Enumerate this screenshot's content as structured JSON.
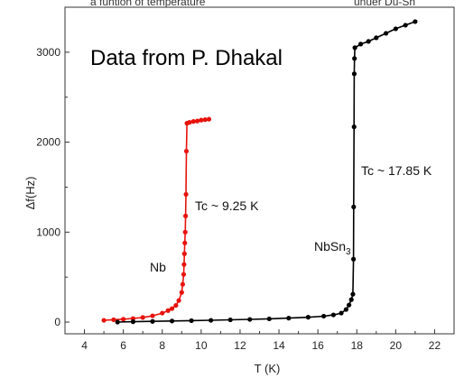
{
  "header": {
    "left_text": "a funtion of temperature",
    "right_text": "unuer Du-Sn"
  },
  "annotations": {
    "source": "Data from P. Dhakal",
    "nb_tc": "Tc ~ 9.25 K",
    "nbsn3_tc": "Tc ~ 17.85 K",
    "nb_label": "Nb",
    "nbsn3_label_main": "NbSn",
    "nbsn3_label_sub": "3"
  },
  "chart_data": {
    "type": "scatter",
    "title": "",
    "xlabel": "T (K)",
    "ylabel": "Δf(Hz)",
    "xlim": [
      3,
      23
    ],
    "ylim": [
      -130,
      3500
    ],
    "xticks": [
      4,
      6,
      8,
      10,
      12,
      14,
      16,
      18,
      20,
      22
    ],
    "yticks": [
      0,
      1000,
      2000,
      3000
    ],
    "series": [
      {
        "name": "Nb",
        "color": "#e8120c",
        "points": [
          [
            5.0,
            20
          ],
          [
            5.5,
            26
          ],
          [
            6.0,
            32
          ],
          [
            6.5,
            40
          ],
          [
            7.0,
            52
          ],
          [
            7.5,
            70
          ],
          [
            8.0,
            100
          ],
          [
            8.3,
            128
          ],
          [
            8.5,
            150
          ],
          [
            8.7,
            185
          ],
          [
            8.85,
            240
          ],
          [
            9.0,
            330
          ],
          [
            9.05,
            420
          ],
          [
            9.1,
            530
          ],
          [
            9.12,
            640
          ],
          [
            9.14,
            760
          ],
          [
            9.16,
            880
          ],
          [
            9.18,
            1000
          ],
          [
            9.2,
            1180
          ],
          [
            9.22,
            1420
          ],
          [
            9.24,
            1900
          ],
          [
            9.27,
            2210
          ],
          [
            9.4,
            2220
          ],
          [
            9.6,
            2230
          ],
          [
            9.8,
            2235
          ],
          [
            10.0,
            2245
          ],
          [
            10.2,
            2250
          ],
          [
            10.4,
            2255
          ]
        ]
      },
      {
        "name": "NbSn3",
        "color": "#000000",
        "points": [
          [
            5.7,
            0
          ],
          [
            6.5,
            4
          ],
          [
            7.5,
            8
          ],
          [
            8.5,
            12
          ],
          [
            9.5,
            16
          ],
          [
            10.5,
            20
          ],
          [
            11.5,
            25
          ],
          [
            12.5,
            30
          ],
          [
            13.5,
            36
          ],
          [
            14.5,
            44
          ],
          [
            15.5,
            54
          ],
          [
            16.3,
            66
          ],
          [
            16.8,
            80
          ],
          [
            17.2,
            100
          ],
          [
            17.45,
            140
          ],
          [
            17.6,
            190
          ],
          [
            17.72,
            250
          ],
          [
            17.8,
            310
          ],
          [
            17.83,
            700
          ],
          [
            17.84,
            1280
          ],
          [
            17.86,
            2170
          ],
          [
            17.87,
            2760
          ],
          [
            17.88,
            2930
          ],
          [
            17.9,
            3050
          ],
          [
            18.2,
            3090
          ],
          [
            18.6,
            3120
          ],
          [
            19.0,
            3160
          ],
          [
            19.5,
            3210
          ],
          [
            20.0,
            3260
          ],
          [
            20.5,
            3300
          ],
          [
            21.0,
            3340
          ]
        ]
      }
    ]
  }
}
